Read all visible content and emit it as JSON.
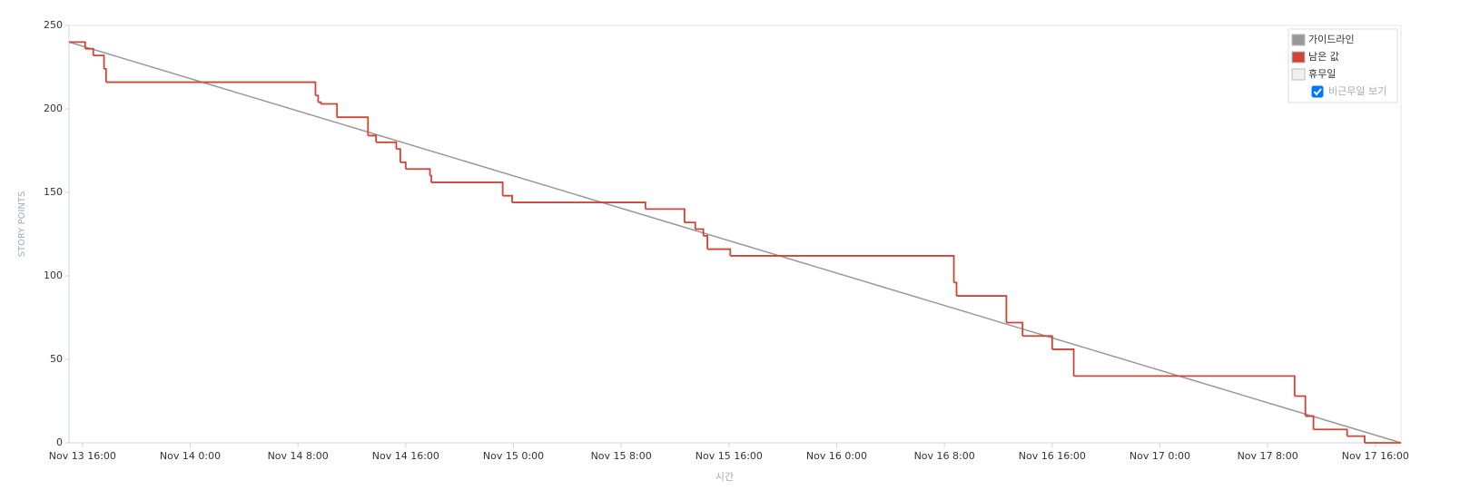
{
  "chart_data": {
    "type": "step",
    "y_label": "STORY POINTS",
    "x_label": "시간",
    "xlim": [
      -1,
      97.9
    ],
    "ylim": [
      0,
      250
    ],
    "yticks": [
      0,
      50,
      100,
      150,
      200,
      250
    ],
    "xticks": [
      {
        "value": 0,
        "label": "Nov 13 16:00"
      },
      {
        "value": 8,
        "label": "Nov 14 0:00"
      },
      {
        "value": 16,
        "label": "Nov 14 8:00"
      },
      {
        "value": 24,
        "label": "Nov 14 16:00"
      },
      {
        "value": 32,
        "label": "Nov 15 0:00"
      },
      {
        "value": 40,
        "label": "Nov 15 8:00"
      },
      {
        "value": 48,
        "label": "Nov 15 16:00"
      },
      {
        "value": 56,
        "label": "Nov 16 0:00"
      },
      {
        "value": 64,
        "label": "Nov 16 8:00"
      },
      {
        "value": 72,
        "label": "Nov 16 16:00"
      },
      {
        "value": 80,
        "label": "Nov 17 0:00"
      },
      {
        "value": 88,
        "label": "Nov 17 8:00"
      },
      {
        "value": 96,
        "label": "Nov 17 16:00"
      }
    ],
    "series": [
      {
        "name": "가이드라인",
        "color": "#999999",
        "style": "line",
        "x": [
          -1,
          97.9
        ],
        "values": [
          240,
          0
        ]
      },
      {
        "name": "남은 값",
        "color": "#d04437",
        "style": "step",
        "x": [
          -1,
          0.2,
          0.8,
          1.6,
          1.75,
          17.3,
          17.5,
          17.7,
          18.9,
          21.2,
          21.8,
          23.3,
          23.6,
          24.0,
          25.8,
          25.9,
          31.2,
          31.9,
          41.8,
          44.7,
          45.5,
          46.1,
          46.4,
          48.1,
          64.7,
          64.9,
          68.6,
          69.8,
          72.0,
          73.6,
          90.0,
          90.8,
          91.4,
          93.9,
          95.2,
          97.9
        ],
        "values": [
          240,
          236,
          232,
          224,
          216,
          208,
          204,
          203,
          195,
          184,
          180,
          176,
          168,
          164,
          160,
          156,
          148,
          144,
          140,
          132,
          128,
          124,
          116,
          112,
          96,
          88,
          72,
          64,
          56,
          40,
          28,
          16,
          8,
          4,
          0,
          0
        ]
      }
    ],
    "legend_extra": {
      "name": "휴무일",
      "color": "#f0f0f0"
    },
    "checkbox_label": "비근무일 보기",
    "checkbox_checked": true
  }
}
